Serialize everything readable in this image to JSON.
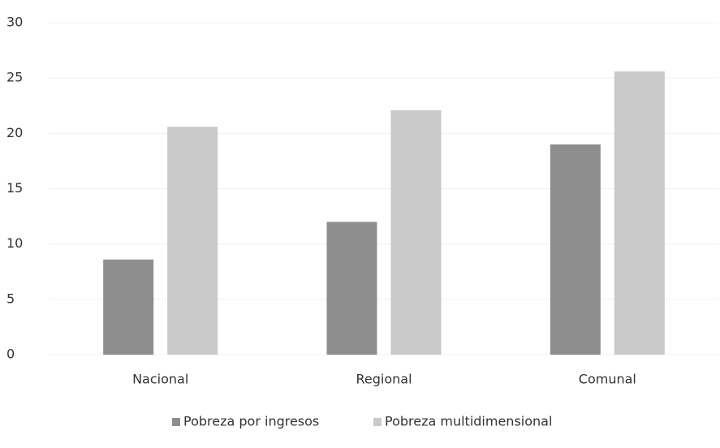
{
  "chart_data": {
    "type": "bar",
    "categories": [
      "Nacional",
      "Regional",
      "Comunal"
    ],
    "series": [
      {
        "name": "Pobreza por ingresos",
        "color": "#8e8e8e",
        "values": [
          8.6,
          12.0,
          19.0
        ]
      },
      {
        "name": "Pobreza multidimensional",
        "color": "#c9c9c9",
        "values": [
          20.6,
          22.1,
          25.6
        ]
      }
    ],
    "ylim": [
      0,
      30
    ],
    "yticks": [
      0,
      5,
      10,
      15,
      20,
      25,
      30
    ],
    "grid": true,
    "legend": "bottom"
  }
}
